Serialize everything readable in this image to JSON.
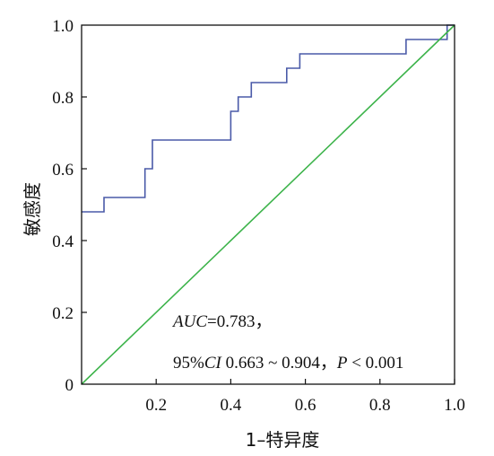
{
  "chart_data": {
    "type": "line",
    "xlabel": "1–特异度",
    "ylabel": "敏感度",
    "xlim": [
      0,
      1
    ],
    "ylim": [
      0,
      1
    ],
    "x_ticks": [
      {
        "value": 0.2,
        "label": "0.2"
      },
      {
        "value": 0.4,
        "label": "0.4"
      },
      {
        "value": 0.6,
        "label": "0.6"
      },
      {
        "value": 0.8,
        "label": "0.8"
      },
      {
        "value": 1.0,
        "label": "1.0"
      }
    ],
    "y_ticks": [
      {
        "value": 0,
        "label": "0"
      },
      {
        "value": 0.2,
        "label": "0.2"
      },
      {
        "value": 0.4,
        "label": "0.4"
      },
      {
        "value": 0.6,
        "label": "0.6"
      },
      {
        "value": 0.8,
        "label": "0.8"
      },
      {
        "value": 1.0,
        "label": "1.0"
      }
    ],
    "series": [
      {
        "color": "#4a5aa8",
        "step": true,
        "points": [
          [
            0,
            0.48
          ],
          [
            0.06,
            0.48
          ],
          [
            0.06,
            0.52
          ],
          [
            0.17,
            0.52
          ],
          [
            0.17,
            0.6
          ],
          [
            0.19,
            0.6
          ],
          [
            0.19,
            0.68
          ],
          [
            0.4,
            0.68
          ],
          [
            0.4,
            0.76
          ],
          [
            0.42,
            0.76
          ],
          [
            0.42,
            0.8
          ],
          [
            0.455,
            0.8
          ],
          [
            0.455,
            0.84
          ],
          [
            0.55,
            0.84
          ],
          [
            0.55,
            0.88
          ],
          [
            0.585,
            0.88
          ],
          [
            0.585,
            0.92
          ],
          [
            0.87,
            0.92
          ],
          [
            0.87,
            0.96
          ],
          [
            0.98,
            0.96
          ],
          [
            0.98,
            1.0
          ],
          [
            1.0,
            1.0
          ]
        ]
      },
      {
        "color": "#3cb34a",
        "points": [
          [
            0,
            0
          ],
          [
            1,
            1
          ]
        ]
      }
    ],
    "annotations": {
      "auc_label": "AUC",
      "auc_value": "=0.783，",
      "ci_prefix": "95%",
      "ci_label": "CI",
      "ci_range": " 0.663 ~ 0.904，",
      "p_label": "P",
      "p_value": " < 0.001"
    },
    "grid": false,
    "legend": "none"
  }
}
